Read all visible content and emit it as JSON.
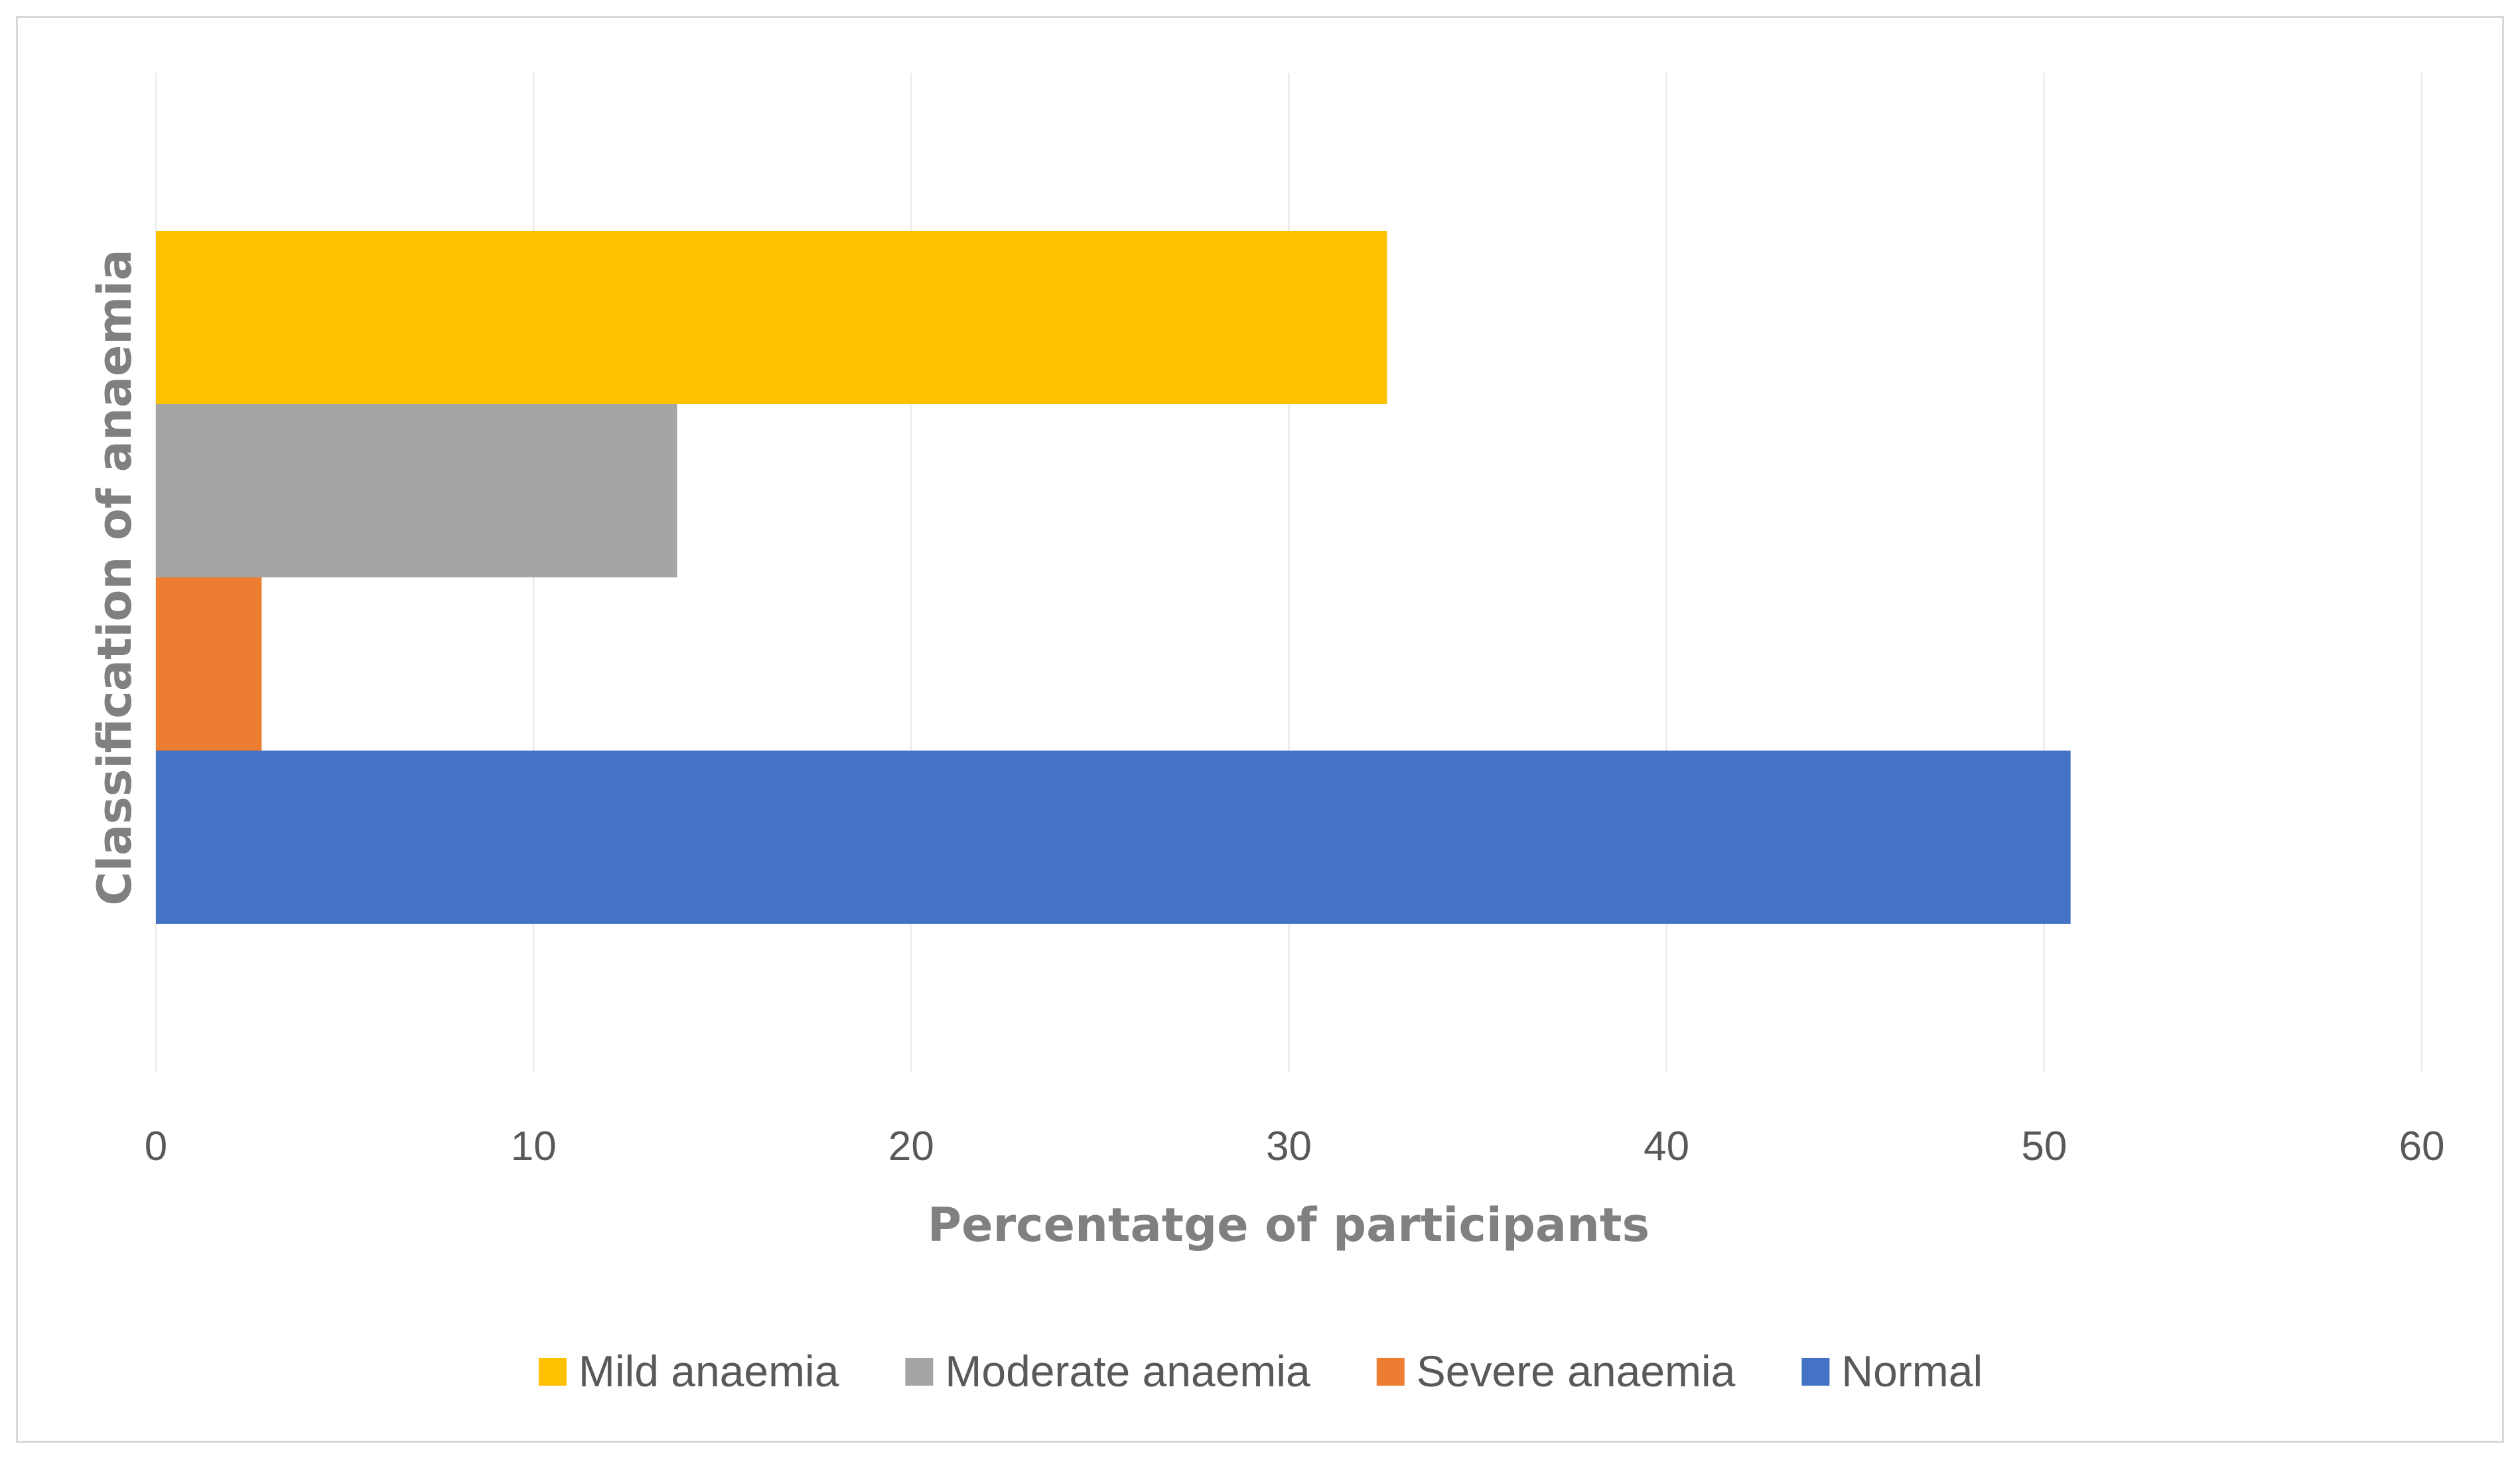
{
  "chart_data": {
    "type": "bar",
    "orientation": "horizontal",
    "title": "",
    "xlabel": "Percentatge of participants",
    "ylabel": "Classification of anaemia",
    "xlim": [
      0,
      60
    ],
    "xticks": [
      0,
      10,
      20,
      30,
      40,
      50,
      60
    ],
    "grid": true,
    "legend_position": "bottom",
    "series": [
      {
        "name": "Mild anaemia",
        "value": 32.6,
        "color": "#FFC000"
      },
      {
        "name": "Moderate anaemia",
        "value": 13.8,
        "color": "#A5A5A5"
      },
      {
        "name": "Severe anaemia",
        "value": 2.8,
        "color": "#ED7D31"
      },
      {
        "name": "Normal",
        "value": 50.7,
        "color": "#4472C4"
      }
    ]
  }
}
